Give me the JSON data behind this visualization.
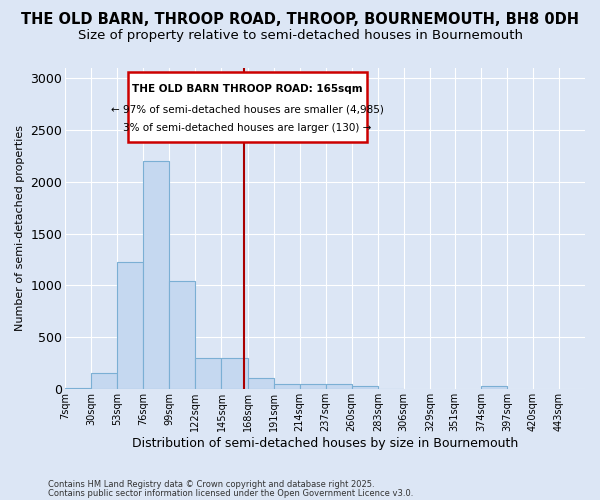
{
  "title_line1": "THE OLD BARN, THROOP ROAD, THROOP, BOURNEMOUTH, BH8 0DH",
  "title_line2": "Size of property relative to semi-detached houses in Bournemouth",
  "xlabel": "Distribution of semi-detached houses by size in Bournemouth",
  "ylabel": "Number of semi-detached properties",
  "footnote1": "Contains HM Land Registry data © Crown copyright and database right 2025.",
  "footnote2": "Contains public sector information licensed under the Open Government Licence v3.0.",
  "annotation_title": "THE OLD BARN THROOP ROAD: 165sqm",
  "annotation_line2": "← 97% of semi-detached houses are smaller (4,985)",
  "annotation_line3": "3% of semi-detached houses are larger (130) →",
  "property_size": 165,
  "bar_color": "#c5d8f0",
  "bar_edge_color": "#7bafd4",
  "vline_color": "#aa0000",
  "annotation_box_color": "#cc0000",
  "background_color": "#dce6f5",
  "bin_starts": [
    7,
    30,
    53,
    76,
    99,
    122,
    145,
    168,
    191,
    214,
    237,
    260,
    283,
    306,
    329,
    351,
    374,
    397,
    420,
    443
  ],
  "bin_width": 23,
  "bar_heights": [
    15,
    155,
    1230,
    2200,
    1040,
    300,
    300,
    110,
    55,
    55,
    55,
    30,
    5,
    0,
    0,
    0,
    30,
    0,
    0,
    0
  ],
  "ylim": [
    0,
    3100
  ],
  "yticks": [
    0,
    500,
    1000,
    1500,
    2000,
    2500,
    3000
  ],
  "grid_color": "#ffffff",
  "title_fontsize": 10.5,
  "subtitle_fontsize": 9.5
}
